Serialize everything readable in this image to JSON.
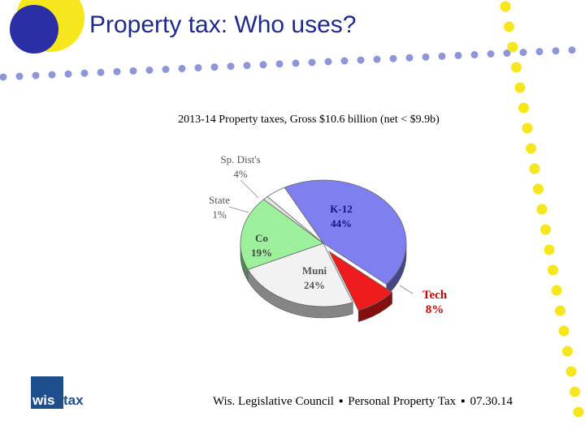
{
  "slide": {
    "title": "Property tax:  Who uses?"
  },
  "footer": {
    "org": "Wis. Legislative Council",
    "topic": "Personal Property Tax",
    "date": "07.30.14",
    "separator": "▪"
  },
  "logo": {
    "part1": "wis",
    "part2": "tax"
  },
  "colors": {
    "title": "#1f2a8c",
    "accent_yellow": "#f5e61e",
    "accent_blue": "#2b2fa6",
    "dots": "#8f96d6"
  },
  "chart_data": {
    "type": "pie",
    "title": "2013-14 Property taxes, Gross $10.6 billion (net < $9.9b)",
    "slices": [
      {
        "label": "K-12",
        "value": 44,
        "pct": "44%",
        "color": "#7f7ff0",
        "label_color": "#14148c"
      },
      {
        "label": "Tech",
        "value": 8,
        "pct": "8%",
        "color": "#ee1c1c",
        "label_color": "#cc0000",
        "exploded": true
      },
      {
        "label": "Muni",
        "value": 24,
        "pct": "24%",
        "color": "#f2f2f2",
        "label_color": "#555555"
      },
      {
        "label": "Co",
        "value": 19,
        "pct": "19%",
        "color": "#9cf09c",
        "label_color": "#444444"
      },
      {
        "label": "State",
        "value": 1,
        "pct": "1%",
        "color": "#e6e6e6",
        "label_color": "#555555"
      },
      {
        "label": "Sp. Dist's",
        "value": 4,
        "pct": "4%",
        "color": "#ffffff",
        "label_color": "#555555"
      }
    ]
  }
}
